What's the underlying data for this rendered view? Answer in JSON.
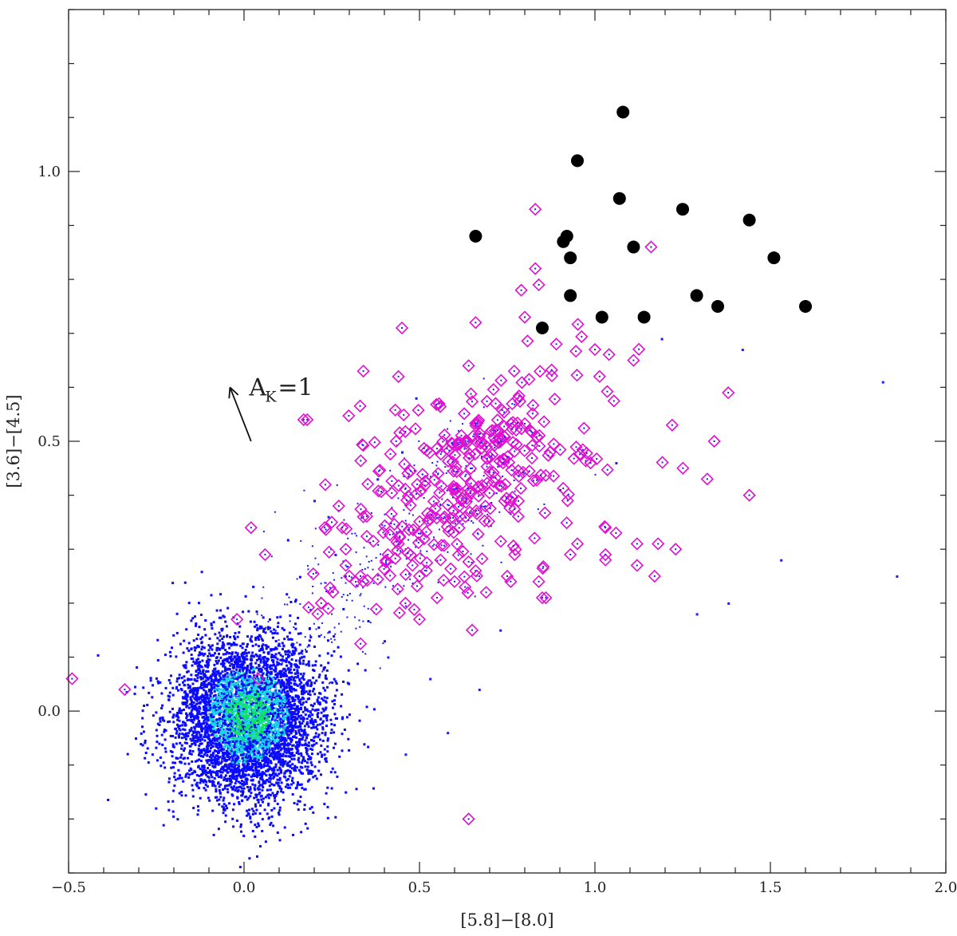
{
  "chart_data": {
    "type": "scatter",
    "title": "",
    "xlabel": "[5.8]−[8.0]",
    "ylabel": "[3.6]−[4.5]",
    "xlim": [
      -0.5,
      2.0
    ],
    "ylim": [
      -0.3,
      1.3
    ],
    "grid": false,
    "legend": "none",
    "x_ticks": [
      -0.5,
      0.0,
      0.5,
      1.0,
      1.5,
      2.0
    ],
    "x_tick_labels": [
      "−0.5",
      "0.0",
      "0.5",
      "1.0",
      "1.5",
      "2.0"
    ],
    "y_ticks": [
      0.0,
      0.5,
      1.0
    ],
    "y_tick_labels": [
      "0.0",
      "0.5",
      "1.0"
    ],
    "annotation": {
      "text_main": "A",
      "text_sub": "K",
      "text_rest": "=1",
      "arrow_from": [
        0.02,
        0.5
      ],
      "arrow_to": [
        -0.04,
        0.6
      ]
    },
    "colors": {
      "density_low": "#0a0aff",
      "density_mid": "#18d6e6",
      "density_high": "#10e060",
      "diamonds": "#e010d0",
      "circles": "#000000",
      "sparse_points": "#1a1aff"
    },
    "series": [
      {
        "marker": "filled-circle",
        "x": [
          1.08,
          0.95,
          1.07,
          1.25,
          1.44,
          0.66,
          0.91,
          0.92,
          1.11,
          0.93,
          1.51,
          1.29,
          0.93,
          1.02,
          1.14,
          1.35,
          1.6,
          0.85
        ],
        "y": [
          1.11,
          1.02,
          0.95,
          0.93,
          0.91,
          0.88,
          0.87,
          0.88,
          0.86,
          0.84,
          0.84,
          0.77,
          0.77,
          0.73,
          0.73,
          0.75,
          0.75,
          0.71
        ]
      },
      {
        "marker": "open-diamond",
        "x": [
          0.83,
          1.16,
          0.83,
          0.84,
          0.79,
          0.8,
          0.45,
          0.66,
          0.89,
          1.0,
          0.34,
          0.44,
          0.64,
          1.11,
          1.38,
          0.77,
          0.18,
          0.17,
          1.34,
          1.22,
          1.32,
          1.44,
          0.28,
          0.25,
          0.23,
          0.27,
          0.29,
          0.34,
          0.44,
          0.48,
          0.52,
          0.56,
          0.6,
          0.66,
          0.75,
          0.86,
          0.95,
          1.03,
          1.12,
          1.17,
          1.06,
          1.03,
          0.22,
          0.21,
          0.24,
          0.29,
          0.3,
          0.34,
          0.41,
          0.46,
          0.5,
          0.55,
          0.63,
          0.69,
          0.76,
          0.84,
          0.93,
          1.03,
          1.12,
          1.18,
          1.23,
          0.02,
          0.06,
          -0.02,
          0.04,
          -0.34,
          -0.49,
          0.5,
          0.65,
          0.64,
          0.85
        ],
        "y": [
          0.93,
          0.86,
          0.82,
          0.79,
          0.78,
          0.73,
          0.71,
          0.72,
          0.68,
          0.67,
          0.63,
          0.62,
          0.64,
          0.65,
          0.59,
          0.63,
          0.54,
          0.54,
          0.5,
          0.53,
          0.43,
          0.4,
          0.34,
          0.35,
          0.34,
          0.38,
          0.3,
          0.36,
          0.31,
          0.27,
          0.26,
          0.28,
          0.24,
          0.26,
          0.25,
          0.21,
          0.31,
          0.28,
          0.27,
          0.25,
          0.33,
          0.34,
          0.2,
          0.18,
          0.19,
          0.27,
          0.25,
          0.24,
          0.29,
          0.2,
          0.25,
          0.21,
          0.23,
          0.22,
          0.24,
          0.24,
          0.29,
          0.29,
          0.31,
          0.31,
          0.3,
          0.34,
          0.29,
          0.17,
          0.06,
          0.04,
          0.06,
          0.17,
          0.15,
          -0.2,
          0.21
        ]
      },
      {
        "marker": "dot",
        "x": [
          1.19,
          1.42,
          1.82,
          1.53,
          1.86,
          1.29,
          1.38,
          0.49,
          0.45,
          0.38,
          0.9,
          1.06,
          0.2,
          0.24,
          0.26,
          0.4,
          0.41,
          0.53,
          0.46,
          0.58,
          0.67,
          0.73
        ],
        "y": [
          0.69,
          0.67,
          0.61,
          0.28,
          0.25,
          0.18,
          0.2,
          0.58,
          0.48,
          0.43,
          0.41,
          0.46,
          0.39,
          0.36,
          0.29,
          0.13,
          0.1,
          0.06,
          -0.08,
          -0.04,
          0.04,
          0.15
        ]
      }
    ]
  }
}
